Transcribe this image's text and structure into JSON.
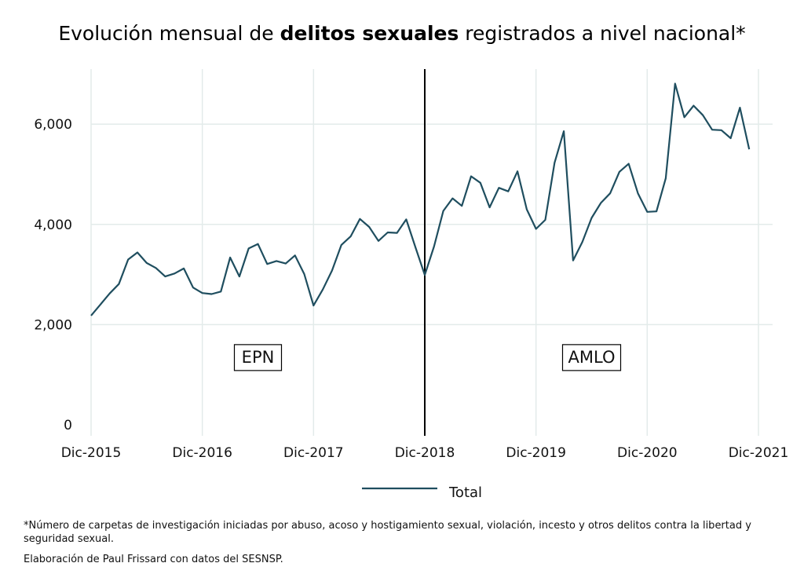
{
  "title": {
    "prefix": "Evolución mensual de ",
    "bold": "delitos sexuales",
    "suffix": " registrados a nivel nacional*"
  },
  "chart_data": {
    "type": "line",
    "x_unit": "months since Dec 2015",
    "x": [
      0,
      1,
      2,
      3,
      4,
      5,
      6,
      7,
      8,
      9,
      10,
      11,
      12,
      13,
      14,
      15,
      16,
      17,
      18,
      19,
      20,
      21,
      22,
      23,
      24,
      25,
      26,
      27,
      28,
      29,
      30,
      31,
      32,
      33,
      34,
      35,
      36,
      37,
      38,
      39,
      40,
      41,
      42,
      43,
      44,
      45,
      46,
      47,
      48,
      49,
      50,
      51,
      52,
      53,
      54,
      55,
      56,
      57,
      58,
      59,
      60,
      61,
      62,
      63,
      64,
      65,
      66,
      67,
      68,
      69,
      70,
      71
    ],
    "x_ticks": [
      {
        "x": 0,
        "label": "Dic-2015"
      },
      {
        "x": 12,
        "label": "Dic-2016"
      },
      {
        "x": 24,
        "label": "Dic-2017"
      },
      {
        "x": 36,
        "label": "Dic-2018"
      },
      {
        "x": 48,
        "label": "Dic-2019"
      },
      {
        "x": 60,
        "label": "Dic-2020"
      },
      {
        "x": 72,
        "label": "Dic-2021"
      }
    ],
    "y_ticks": [
      {
        "y": 0,
        "label": "0"
      },
      {
        "y": 2000,
        "label": "2,000"
      },
      {
        "y": 4000,
        "label": "4,000"
      },
      {
        "y": 6000,
        "label": "6,000"
      }
    ],
    "xlim": [
      0,
      72
    ],
    "ylim": [
      0,
      7100
    ],
    "grid": true,
    "series": [
      {
        "name": "Total",
        "color": "#1f4e5f",
        "values": [
          2180,
          2400,
          2620,
          2810,
          3300,
          3440,
          3230,
          3130,
          2960,
          3020,
          3120,
          2740,
          2630,
          2610,
          2660,
          3340,
          2960,
          3520,
          3610,
          3210,
          3270,
          3220,
          3380,
          3010,
          2380,
          2700,
          3080,
          3590,
          3760,
          4110,
          3950,
          3670,
          3840,
          3830,
          4100,
          3540,
          2990,
          3560,
          4270,
          4520,
          4370,
          4960,
          4830,
          4340,
          4730,
          4660,
          5060,
          4300,
          3910,
          4090,
          5230,
          5860,
          3280,
          3650,
          4130,
          4430,
          4620,
          5050,
          5210,
          4620,
          4250,
          4260,
          4920,
          6810,
          6140,
          6370,
          6180,
          5890,
          5880,
          5720,
          6330,
          5500
        ]
      }
    ],
    "divider": {
      "x": 36,
      "color": "#000000"
    },
    "annotations": [
      {
        "label": "EPN",
        "x": 18,
        "y": 1350
      },
      {
        "label": "AMLO",
        "x": 54,
        "y": 1350
      }
    ],
    "legend": {
      "position": "bottom-center",
      "label": "Total"
    }
  },
  "footnote": "*Número de carpetas de investigación iniciadas por abuso, acoso y hostigamiento sexual, violación, incesto y otros delitos contra la libertad y seguridad sexual.",
  "credit": "Elaboración de Paul Frissard con datos del SESNSP."
}
